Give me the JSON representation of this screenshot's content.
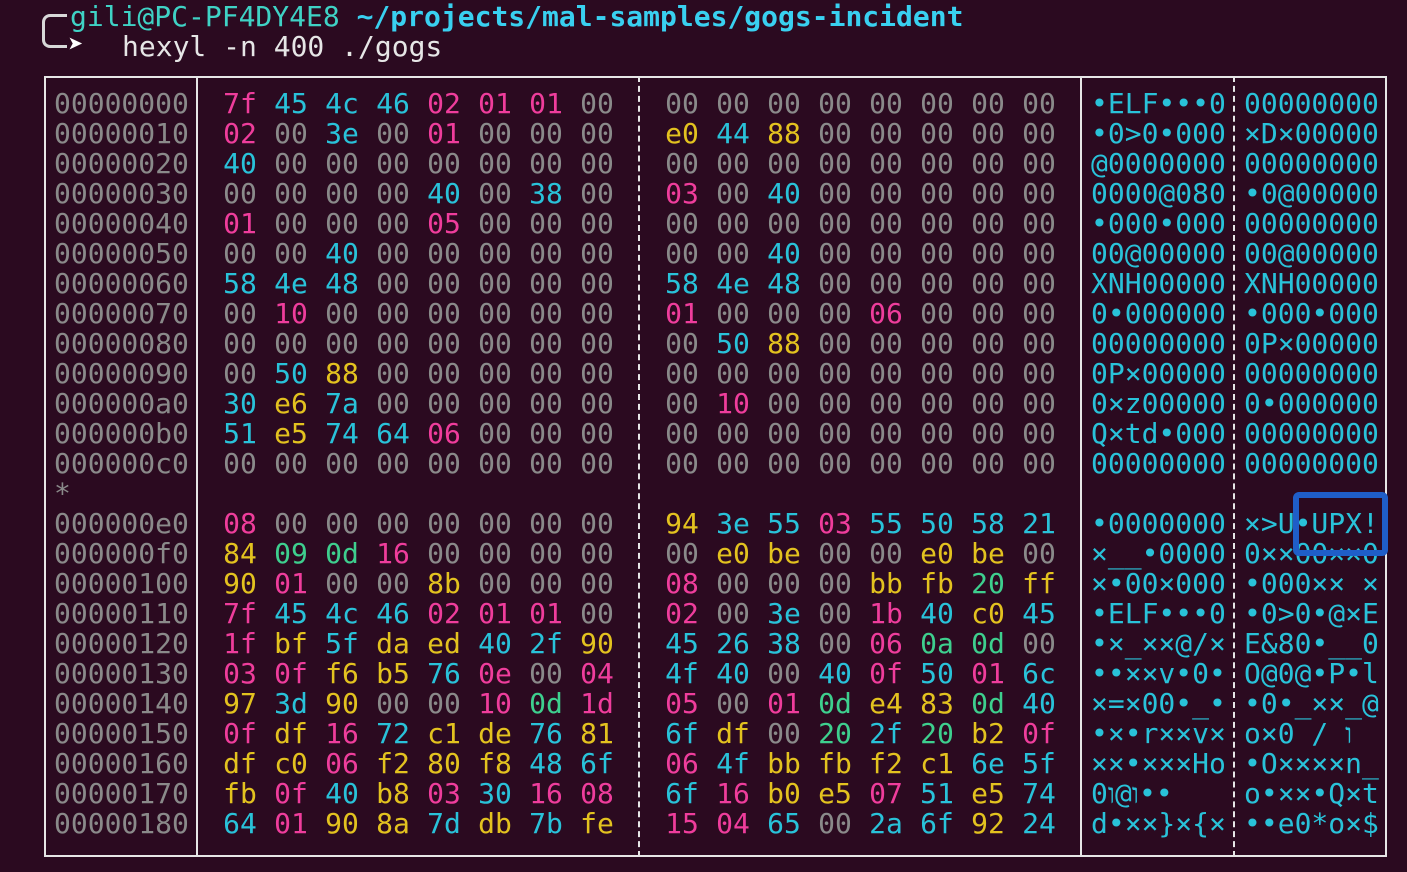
{
  "prompt": {
    "user_host": "gili@PC-PF4DY4E8",
    "path": "~/projects/mal-samples/gogs-incident",
    "command": "hexyl -n 400 ./gogs"
  },
  "colors": {
    "null": "#8a8a8a",
    "ascii_printable": "#29c2d9",
    "whitespace": "#3ecf8e",
    "ascii_other": "#ef3d9c",
    "non_ascii": "#e3c21f",
    "annotation": "#1f5ec8"
  },
  "icons": {
    "prompt_arrow": "➤"
  },
  "hexdump": {
    "rows": [
      {
        "offset": "00000000",
        "bytes": [
          "7f",
          "45",
          "4c",
          "46",
          "02",
          "01",
          "01",
          "00",
          "00",
          "00",
          "00",
          "00",
          "00",
          "00",
          "00",
          "00"
        ],
        "text1": "•ELF•••0",
        "text2": "00000000"
      },
      {
        "offset": "00000010",
        "bytes": [
          "02",
          "00",
          "3e",
          "00",
          "01",
          "00",
          "00",
          "00",
          "e0",
          "44",
          "88",
          "00",
          "00",
          "00",
          "00",
          "00"
        ],
        "text1": "•0>0•000",
        "text2": "×D×00000"
      },
      {
        "offset": "00000020",
        "bytes": [
          "40",
          "00",
          "00",
          "00",
          "00",
          "00",
          "00",
          "00",
          "00",
          "00",
          "00",
          "00",
          "00",
          "00",
          "00",
          "00"
        ],
        "text1": "@0000000",
        "text2": "00000000"
      },
      {
        "offset": "00000030",
        "bytes": [
          "00",
          "00",
          "00",
          "00",
          "40",
          "00",
          "38",
          "00",
          "03",
          "00",
          "40",
          "00",
          "00",
          "00",
          "00",
          "00"
        ],
        "text1": "0000@080",
        "text2": "•0@00000"
      },
      {
        "offset": "00000040",
        "bytes": [
          "01",
          "00",
          "00",
          "00",
          "05",
          "00",
          "00",
          "00",
          "00",
          "00",
          "00",
          "00",
          "00",
          "00",
          "00",
          "00"
        ],
        "text1": "•000•000",
        "text2": "00000000"
      },
      {
        "offset": "00000050",
        "bytes": [
          "00",
          "00",
          "40",
          "00",
          "00",
          "00",
          "00",
          "00",
          "00",
          "00",
          "40",
          "00",
          "00",
          "00",
          "00",
          "00"
        ],
        "text1": "00@00000",
        "text2": "00@00000"
      },
      {
        "offset": "00000060",
        "bytes": [
          "58",
          "4e",
          "48",
          "00",
          "00",
          "00",
          "00",
          "00",
          "58",
          "4e",
          "48",
          "00",
          "00",
          "00",
          "00",
          "00"
        ],
        "text1": "XNH00000",
        "text2": "XNH00000"
      },
      {
        "offset": "00000070",
        "bytes": [
          "00",
          "10",
          "00",
          "00",
          "00",
          "00",
          "00",
          "00",
          "01",
          "00",
          "00",
          "00",
          "06",
          "00",
          "00",
          "00"
        ],
        "text1": "0•000000",
        "text2": "•000•000"
      },
      {
        "offset": "00000080",
        "bytes": [
          "00",
          "00",
          "00",
          "00",
          "00",
          "00",
          "00",
          "00",
          "00",
          "50",
          "88",
          "00",
          "00",
          "00",
          "00",
          "00"
        ],
        "text1": "00000000",
        "text2": "0P×00000"
      },
      {
        "offset": "00000090",
        "bytes": [
          "00",
          "50",
          "88",
          "00",
          "00",
          "00",
          "00",
          "00",
          "00",
          "00",
          "00",
          "00",
          "00",
          "00",
          "00",
          "00"
        ],
        "text1": "0P×00000",
        "text2": "00000000"
      },
      {
        "offset": "000000a0",
        "bytes": [
          "30",
          "e6",
          "7a",
          "00",
          "00",
          "00",
          "00",
          "00",
          "00",
          "10",
          "00",
          "00",
          "00",
          "00",
          "00",
          "00"
        ],
        "text1": "0×z00000",
        "text2": "0•000000"
      },
      {
        "offset": "000000b0",
        "bytes": [
          "51",
          "e5",
          "74",
          "64",
          "06",
          "00",
          "00",
          "00",
          "00",
          "00",
          "00",
          "00",
          "00",
          "00",
          "00",
          "00"
        ],
        "text1": "Q×td•000",
        "text2": "00000000"
      },
      {
        "offset": "000000c0",
        "bytes": [
          "00",
          "00",
          "00",
          "00",
          "00",
          "00",
          "00",
          "00",
          "00",
          "00",
          "00",
          "00",
          "00",
          "00",
          "00",
          "00"
        ],
        "text1": "00000000",
        "text2": "00000000"
      },
      {
        "offset": "*",
        "bytes": [],
        "text1": "",
        "text2": ""
      },
      {
        "offset": "000000e0",
        "bytes": [
          "08",
          "00",
          "00",
          "00",
          "00",
          "00",
          "00",
          "00",
          "94",
          "3e",
          "55",
          "03",
          "55",
          "50",
          "58",
          "21"
        ],
        "text1": "•0000000",
        "text2": "×>U•UPX!"
      },
      {
        "offset": "000000f0",
        "bytes": [
          "84",
          "09",
          "0d",
          "16",
          "00",
          "00",
          "00",
          "00",
          "00",
          "e0",
          "be",
          "00",
          "00",
          "e0",
          "be",
          "00"
        ],
        "text1": "×__•0000",
        "text2": "0××00××0"
      },
      {
        "offset": "00000100",
        "bytes": [
          "90",
          "01",
          "00",
          "00",
          "8b",
          "00",
          "00",
          "00",
          "08",
          "00",
          "00",
          "00",
          "bb",
          "fb",
          "20",
          "ff"
        ],
        "text1": "×•00×000",
        "text2": "•000×× ×"
      },
      {
        "offset": "00000110",
        "bytes": [
          "7f",
          "45",
          "4c",
          "46",
          "02",
          "01",
          "01",
          "00",
          "02",
          "00",
          "3e",
          "00",
          "1b",
          "40",
          "c0",
          "45"
        ],
        "text1": "•ELF•••0",
        "text2": "•0>0•@×E"
      },
      {
        "offset": "00000120",
        "bytes": [
          "1f",
          "bf",
          "5f",
          "da",
          "ed",
          "40",
          "2f",
          "90",
          "45",
          "26",
          "38",
          "00",
          "06",
          "0a",
          "0d",
          "00"
        ],
        "text1": "•×_××@/×",
        "text2": "E&80•__0"
      },
      {
        "offset": "00000130",
        "bytes": [
          "03",
          "0f",
          "f6",
          "b5",
          "76",
          "0e",
          "00",
          "04",
          "4f",
          "40",
          "00",
          "40",
          "0f",
          "50",
          "01",
          "6c"
        ],
        "text1": "••××v•0•",
        "text2": "O@0@•P•l"
      },
      {
        "offset": "00000140",
        "bytes": [
          "97",
          "3d",
          "90",
          "00",
          "00",
          "10",
          "0d",
          "1d",
          "05",
          "00",
          "01",
          "0d",
          "e4",
          "83",
          "0d",
          "40"
        ],
        "text1": "×=×00•_•",
        "text2": "•0•_××_@"
      },
      {
        "offset": "00000150",
        "bytes": [
          "0f",
          "df",
          "16",
          "72",
          "c1",
          "de",
          "76",
          "81",
          "6f",
          "df",
          "00",
          "20",
          "2f",
          "20",
          "b2",
          "0f"
        ],
        "text1": "•×•r××v×",
        "text2": "o×0 / ו"
      },
      {
        "offset": "00000160",
        "bytes": [
          "df",
          "c0",
          "06",
          "f2",
          "80",
          "f8",
          "48",
          "6f",
          "06",
          "4f",
          "bb",
          "fb",
          "f2",
          "c1",
          "6e",
          "5f"
        ],
        "text1": "××•×××Ho",
        "text2": "•O××××n_"
      },
      {
        "offset": "00000170",
        "bytes": [
          "fb",
          "0f",
          "40",
          "b8",
          "03",
          "30",
          "16",
          "08",
          "6f",
          "16",
          "b0",
          "e5",
          "07",
          "51",
          "e5",
          "74"
        ],
        "text1": "ו@ו0••",
        "text2": "o•××•Q×t"
      },
      {
        "offset": "00000180",
        "bytes": [
          "64",
          "01",
          "90",
          "8a",
          "7d",
          "db",
          "7b",
          "fe",
          "15",
          "04",
          "65",
          "00",
          "2a",
          "6f",
          "92",
          "24"
        ],
        "text1": "d•××}×{×",
        "text2": "••e0*o×$"
      }
    ]
  }
}
